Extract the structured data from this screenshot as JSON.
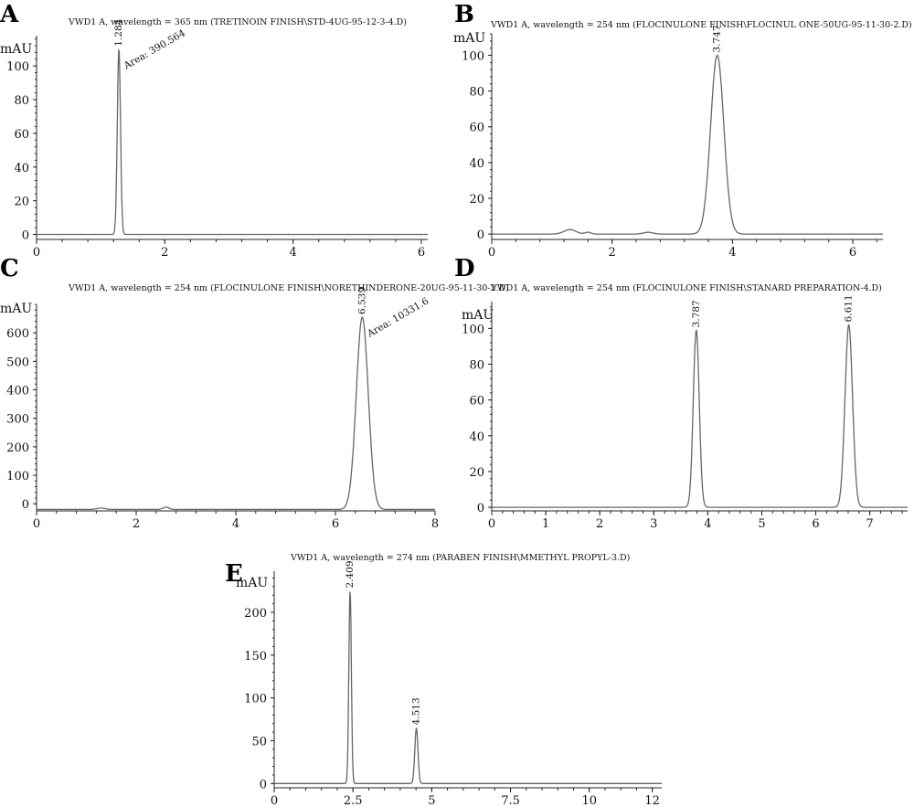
{
  "chart_data": [
    {
      "type": "line",
      "panel": "A",
      "title": "VWD1 A, wavelength = 365 nm (TRETINOIN FINISH\\STD-4UG-95-12-3-4.D)",
      "ylabel": "mAU",
      "xlim": [
        0,
        6.1
      ],
      "ylim": [
        -3,
        118
      ],
      "xticks": [
        0,
        2,
        4,
        6
      ],
      "yticks": [
        0,
        20,
        40,
        60,
        80,
        100
      ],
      "peaks": [
        {
          "rt": 1.284,
          "height": 110,
          "width": 0.025,
          "label": "1.284",
          "area": "Area: 390.564"
        }
      ],
      "bumps": [],
      "series": [
        {
          "x": [
            0,
            1.2,
            1.25,
            1.284,
            1.32,
            1.38,
            6.1
          ],
          "y": [
            0,
            0,
            30,
            110,
            30,
            0,
            0
          ]
        }
      ]
    },
    {
      "type": "line",
      "panel": "B",
      "title": "VWD1 A, wavelength = 254 nm (FLOCINULONE FINISH\\FLOCINUL ONE-50UG-95-11-30-2.D)",
      "ylabel": "mAU",
      "xlim": [
        0,
        6.5
      ],
      "ylim": [
        -3,
        112
      ],
      "xticks": [
        0,
        2,
        4,
        6
      ],
      "yticks": [
        0,
        20,
        40,
        60,
        80,
        100
      ],
      "peaks": [
        {
          "rt": 3.747,
          "height": 100,
          "width": 0.11,
          "label": "3.747"
        }
      ],
      "bumps": [
        {
          "rt": 1.3,
          "height": 2.5,
          "width": 0.1
        },
        {
          "rt": 1.6,
          "height": 1,
          "width": 0.05
        },
        {
          "rt": 2.6,
          "height": 1,
          "width": 0.08
        }
      ],
      "series": [
        {
          "x": [
            0,
            3.3,
            3.5,
            3.747,
            3.95,
            4.1,
            6.5
          ],
          "y": [
            0,
            2,
            25,
            100,
            25,
            0,
            0
          ]
        }
      ]
    },
    {
      "type": "line",
      "panel": "C",
      "title": "VWD1 A, wavelength = 254 nm (FLOCINULONE FINISH\\NORETHINDERONE-20UG-95-11-30-2.D)",
      "ylabel": "mAU",
      "xlim": [
        0,
        8
      ],
      "ylim": [
        -25,
        700
      ],
      "xticks": [
        0,
        2,
        4,
        6,
        8
      ],
      "yticks": [
        0,
        100,
        200,
        300,
        400,
        500,
        600
      ],
      "peaks": [
        {
          "rt": 6.539,
          "height": 655,
          "width": 0.12,
          "label": "6.539",
          "area": "Area: 10331.6"
        }
      ],
      "bumps": [
        {
          "rt": 1.3,
          "height": 5,
          "width": 0.08
        },
        {
          "rt": 2.6,
          "height": 8,
          "width": 0.06
        }
      ],
      "series": [
        {
          "x": [
            0,
            6.2,
            6.4,
            6.539,
            6.7,
            6.9,
            8
          ],
          "y": [
            -20,
            -20,
            200,
            655,
            200,
            -20,
            -20
          ]
        }
      ]
    },
    {
      "type": "line",
      "panel": "D",
      "title": "VWD1 A, wavelength = 254 nm (FLOCINULONE FINISH\\STANARD PREPARATION-4.D)",
      "ylabel": "mAU",
      "xlim": [
        0,
        7.7
      ],
      "ylim": [
        -2,
        115
      ],
      "xticks": [
        0,
        1,
        2,
        3,
        4,
        5,
        6,
        7
      ],
      "yticks": [
        0,
        20,
        40,
        60,
        80,
        100
      ],
      "peaks": [
        {
          "rt": 3.787,
          "height": 99,
          "width": 0.055,
          "label": "3.787"
        },
        {
          "rt": 6.611,
          "height": 102,
          "width": 0.07,
          "label": "6.611"
        }
      ],
      "bumps": [],
      "series": [
        {
          "x": [
            0,
            3.7,
            3.787,
            3.9,
            6.5,
            6.611,
            6.75,
            7.7
          ],
          "y": [
            0,
            0,
            99,
            0,
            0,
            102,
            0,
            0
          ]
        }
      ]
    },
    {
      "type": "line",
      "panel": "E",
      "title": "VWD1 A, wavelength = 274 nm (PARABEN FINISH\\MMETHYL PROPYL-3.D)",
      "ylabel": "mAU",
      "xlim": [
        0,
        12.3
      ],
      "ylim": [
        -5,
        248
      ],
      "xtick_values": [
        0,
        2.5,
        5,
        7.5,
        10,
        12
      ],
      "xticks": [
        "0",
        "2.5",
        "5",
        "7.5",
        "10",
        "12"
      ],
      "yticks": [
        0,
        50,
        100,
        150,
        200
      ],
      "peaks": [
        {
          "rt": 2.409,
          "height": 225,
          "width": 0.04,
          "label": "2.409"
        },
        {
          "rt": 4.513,
          "height": 65,
          "width": 0.05,
          "label": "4.513"
        }
      ],
      "bumps": [],
      "series": [
        {
          "x": [
            0,
            2.3,
            2.409,
            2.55,
            4.4,
            4.513,
            4.65,
            12.3
          ],
          "y": [
            0,
            0,
            225,
            0,
            0,
            65,
            0,
            0
          ]
        }
      ]
    }
  ]
}
